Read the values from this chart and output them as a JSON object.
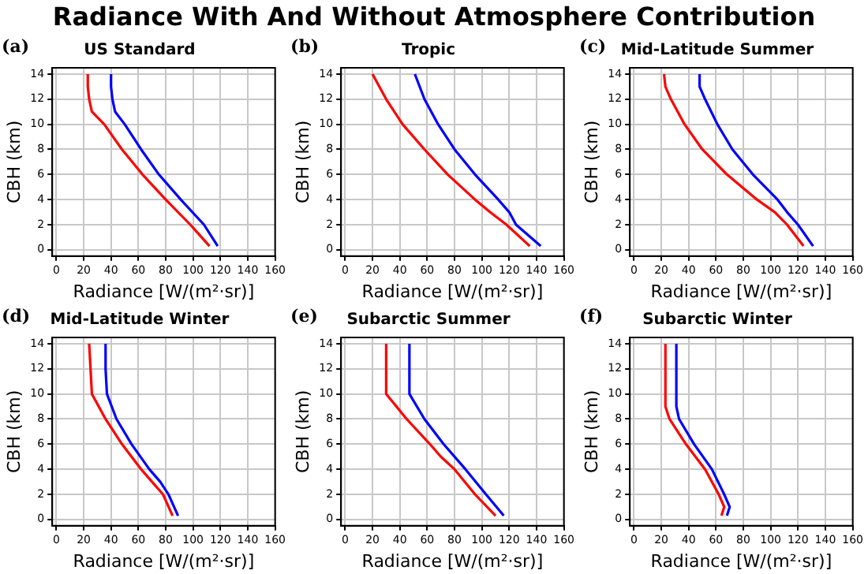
{
  "chart_data": [
    {
      "type": "line",
      "title": "US Standard",
      "annotations": [
        "Radiance With And Without Atmosphere Contribution",
        "(a)"
      ],
      "xlabel": "Radiance [W/(m²·sr)]",
      "ylabel": "CBH (km)",
      "xlim": [
        -3,
        160
      ],
      "ylim": [
        -0.5,
        14.5
      ],
      "xticks": [
        0,
        20,
        40,
        60,
        80,
        100,
        120,
        140,
        160
      ],
      "yticks": [
        0,
        2,
        4,
        6,
        8,
        10,
        12,
        14
      ],
      "grid": true,
      "marker": "none",
      "line_style": "solid",
      "series": [
        {
          "color": "#ff0000",
          "x": [
            112,
            98,
            80,
            63,
            48,
            35,
            26,
            24,
            23,
            23
          ],
          "values": [
            0.3,
            2,
            4,
            6,
            8,
            10,
            11,
            12,
            13,
            14
          ]
        },
        {
          "color": "#0000ff",
          "x": [
            118,
            108,
            91,
            75,
            62,
            50,
            43,
            41,
            40,
            40
          ],
          "values": [
            0.3,
            2,
            4,
            6,
            8,
            10,
            11,
            12,
            13,
            14
          ]
        }
      ]
    },
    {
      "type": "line",
      "title": "Tropic",
      "annotations": [
        "(b)"
      ],
      "xlabel": "Radiance [W/(m²·sr)]",
      "ylabel": "CBH (km)",
      "xlim": [
        -3,
        160
      ],
      "ylim": [
        -0.5,
        14.5
      ],
      "xticks": [
        0,
        20,
        40,
        60,
        80,
        100,
        120,
        140,
        160
      ],
      "yticks": [
        0,
        2,
        4,
        6,
        8,
        10,
        12,
        14
      ],
      "grid": true,
      "marker": "none",
      "line_style": "solid",
      "series": [
        {
          "color": "#ff0000",
          "x": [
            135,
            118,
            106,
            95,
            75,
            58,
            42,
            30,
            20
          ],
          "values": [
            0.3,
            2,
            3,
            4,
            6,
            8,
            10,
            12,
            14
          ]
        },
        {
          "color": "#0000ff",
          "x": [
            143,
            125,
            120,
            112,
            95,
            80,
            68,
            58,
            51
          ],
          "values": [
            0.3,
            2,
            3,
            4,
            6,
            8,
            10,
            12,
            14
          ]
        }
      ]
    },
    {
      "type": "line",
      "title": "Mid-Latitude Summer",
      "annotations": [
        "(c)"
      ],
      "xlabel": "Radiance [W/(m²·sr)]",
      "ylabel": "CBH (km)",
      "xlim": [
        -3,
        160
      ],
      "ylim": [
        -0.5,
        14.5
      ],
      "xticks": [
        0,
        20,
        40,
        60,
        80,
        100,
        120,
        140,
        160
      ],
      "yticks": [
        0,
        2,
        4,
        6,
        8,
        10,
        12,
        14
      ],
      "grid": true,
      "marker": "none",
      "line_style": "solid",
      "series": [
        {
          "color": "#ff0000",
          "x": [
            124,
            112,
            103,
            90,
            68,
            50,
            37,
            27,
            23,
            22
          ],
          "values": [
            0.3,
            2,
            3,
            4,
            6,
            8,
            10,
            12,
            13,
            14
          ]
        },
        {
          "color": "#0000ff",
          "x": [
            131,
            120,
            112,
            105,
            87,
            72,
            61,
            52,
            48,
            48
          ],
          "values": [
            0.3,
            2,
            3,
            4,
            6,
            8,
            10,
            12,
            13,
            14
          ]
        }
      ]
    },
    {
      "type": "line",
      "title": "Mid-Latitude Winter",
      "annotations": [
        "(d)"
      ],
      "xlabel": "Radiance [W/(m²·sr)]",
      "ylabel": "CBH (km)",
      "xlim": [
        -3,
        160
      ],
      "ylim": [
        -0.5,
        14.5
      ],
      "xticks": [
        0,
        20,
        40,
        60,
        80,
        100,
        120,
        140,
        160
      ],
      "yticks": [
        0,
        2,
        4,
        6,
        8,
        10,
        12,
        14
      ],
      "grid": true,
      "marker": "none",
      "line_style": "solid",
      "series": [
        {
          "color": "#ff0000",
          "x": [
            85,
            78,
            70,
            62,
            48,
            36,
            26,
            25,
            24
          ],
          "values": [
            0.3,
            2,
            3,
            4,
            6,
            8,
            10,
            12,
            14
          ]
        },
        {
          "color": "#0000ff",
          "x": [
            89,
            82,
            76,
            68,
            55,
            44,
            37,
            36,
            36
          ],
          "values": [
            0.3,
            2,
            3,
            4,
            6,
            8,
            10,
            12,
            14
          ]
        }
      ]
    },
    {
      "type": "line",
      "title": "Subarctic Summer",
      "annotations": [
        "(e)"
      ],
      "xlabel": "Radiance [W/(m²·sr)]",
      "ylabel": "CBH (km)",
      "xlim": [
        -3,
        160
      ],
      "ylim": [
        -0.5,
        14.5
      ],
      "xticks": [
        0,
        20,
        40,
        60,
        80,
        100,
        120,
        140,
        160
      ],
      "yticks": [
        0,
        2,
        4,
        6,
        8,
        10,
        12,
        14
      ],
      "grid": true,
      "marker": "none",
      "line_style": "solid",
      "series": [
        {
          "color": "#ff0000",
          "x": [
            110,
            95,
            80,
            70,
            62,
            45,
            30,
            30
          ],
          "values": [
            0.3,
            2,
            4,
            5,
            6,
            8,
            10,
            14
          ]
        },
        {
          "color": "#0000ff",
          "x": [
            116,
            103,
            88,
            72,
            58,
            47,
            47
          ],
          "values": [
            0.3,
            2,
            4,
            6,
            8,
            10,
            14
          ]
        }
      ]
    },
    {
      "type": "line",
      "title": "Subarctic Winter",
      "annotations": [
        "(f)"
      ],
      "xlabel": "Radiance [W/(m²·sr)]",
      "ylabel": "CBH (km)",
      "xlim": [
        -3,
        160
      ],
      "ylim": [
        -0.5,
        14.5
      ],
      "xticks": [
        0,
        20,
        40,
        60,
        80,
        100,
        120,
        140,
        160
      ],
      "yticks": [
        0,
        2,
        4,
        6,
        8,
        10,
        12,
        14
      ],
      "grid": true,
      "marker": "none",
      "line_style": "solid",
      "series": [
        {
          "color": "#ff0000",
          "x": [
            64,
            66,
            62,
            52,
            38,
            26,
            23,
            23
          ],
          "values": [
            0.3,
            1,
            2,
            4,
            6,
            8,
            9,
            14
          ]
        },
        {
          "color": "#0000ff",
          "x": [
            68,
            70,
            66,
            57,
            44,
            33,
            31,
            31
          ],
          "values": [
            0.3,
            1,
            2,
            4,
            6,
            8,
            9,
            14
          ]
        }
      ]
    }
  ]
}
